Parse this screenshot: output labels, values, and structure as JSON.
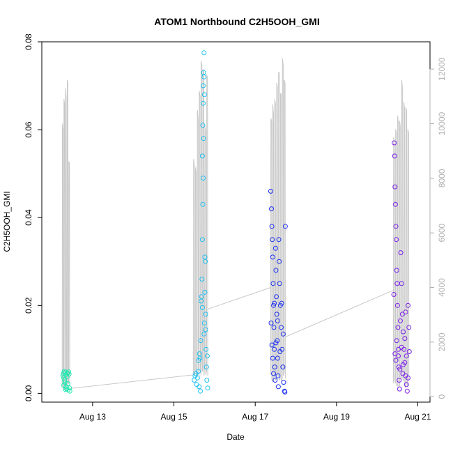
{
  "chart_data": {
    "type": "scatter",
    "title": "ATOM1 Northbound C2H5OOH_GMI",
    "xlabel": "Date",
    "ylabel": "C2H5OOH_GMI",
    "x_ticks": [
      "Aug 13",
      "Aug 15",
      "Aug 17",
      "Aug 19",
      "Aug 21"
    ],
    "x_tick_days": [
      13,
      15,
      17,
      19,
      21
    ],
    "xlim_days": [
      11.75,
      21.3
    ],
    "ylim": [
      -0.002,
      0.08
    ],
    "y_ticks": [
      0.0,
      0.02,
      0.04,
      0.06,
      0.08
    ],
    "y_tick_labels": [
      "0.00",
      "0.02",
      "0.04",
      "0.06",
      "0.08"
    ],
    "y2_label": "",
    "y2_ticks": [
      0,
      2000,
      4000,
      6000,
      8000,
      10000,
      12000
    ],
    "y2_tick_labels": [
      "0",
      "2000",
      "4000",
      "6000",
      "8000",
      "10000",
      "12000"
    ],
    "y2lim": [
      -200,
      13000
    ],
    "grid": false,
    "legend": "none",
    "colors": {
      "flight1": "#22e8b0",
      "flight2": "#1ec0f0",
      "flight3": "#1e30f0",
      "flight4": "#7a1ee8",
      "altitude_line": "#c8c8c8",
      "axis": "#000000",
      "right_axis": "#b0b0b0"
    },
    "series": [
      {
        "x_day_range": [
          12.25,
          12.45
        ],
        "y_range": [
          0.0005,
          0.0055
        ],
        "points": [
          [
            12.27,
            0.004
          ],
          [
            12.28,
            0.0045
          ],
          [
            12.29,
            0.0035
          ],
          [
            12.3,
            0.005
          ],
          [
            12.31,
            0.003
          ],
          [
            12.32,
            0.0025
          ],
          [
            12.33,
            0.0048
          ],
          [
            12.34,
            0.0042
          ],
          [
            12.35,
            0.0015
          ],
          [
            12.36,
            0.001
          ],
          [
            12.37,
            0.0038
          ],
          [
            12.38,
            0.0046
          ],
          [
            12.39,
            0.0022
          ],
          [
            12.4,
            0.0008
          ],
          [
            12.41,
            0.0049
          ],
          [
            12.42,
            0.0044
          ],
          [
            12.43,
            0.0012
          ],
          [
            12.44,
            0.0005
          ],
          [
            12.29,
            0.0018
          ],
          [
            12.33,
            0.0009
          ]
        ]
      },
      {
        "x_day_range": [
          15.45,
          15.85
        ],
        "y_range": [
          0.0005,
          0.0775
        ],
        "points": [
          [
            15.5,
            0.003
          ],
          [
            15.52,
            0.004
          ],
          [
            15.54,
            0.0045
          ],
          [
            15.56,
            0.002
          ],
          [
            15.58,
            0.0035
          ],
          [
            15.6,
            0.005
          ],
          [
            15.62,
            0.0015
          ],
          [
            15.64,
            0.008
          ],
          [
            15.66,
            0.012
          ],
          [
            15.68,
            0.022
          ],
          [
            15.7,
            0.035
          ],
          [
            15.7,
            0.054
          ],
          [
            15.71,
            0.061
          ],
          [
            15.72,
            0.066
          ],
          [
            15.72,
            0.07
          ],
          [
            15.73,
            0.073
          ],
          [
            15.74,
            0.0775
          ],
          [
            15.74,
            0.072
          ],
          [
            15.75,
            0.068
          ],
          [
            15.73,
            0.058
          ],
          [
            15.72,
            0.049
          ],
          [
            15.71,
            0.043
          ],
          [
            15.76,
            0.031
          ],
          [
            15.77,
            0.03
          ],
          [
            15.78,
            0.018
          ],
          [
            15.79,
            0.01
          ],
          [
            15.8,
            0.006
          ],
          [
            15.81,
            0.003
          ],
          [
            15.75,
            0.016
          ],
          [
            15.76,
            0.023
          ],
          [
            15.69,
            0.026
          ],
          [
            15.67,
            0.021
          ],
          [
            15.65,
            0.0005
          ],
          [
            15.63,
            0.009
          ],
          [
            15.61,
            0.0075
          ],
          [
            15.83,
            0.0012
          ],
          [
            15.82,
            0.0085
          ],
          [
            15.78,
            0.0145
          ],
          [
            15.7,
            0.0195
          ],
          [
            15.74,
            0.0135
          ]
        ]
      },
      {
        "x_day_range": [
          17.35,
          17.75
        ],
        "y_range": [
          0.0003,
          0.0465
        ],
        "points": [
          [
            17.38,
            0.046
          ],
          [
            17.4,
            0.042
          ],
          [
            17.41,
            0.038
          ],
          [
            17.42,
            0.035
          ],
          [
            17.43,
            0.031
          ],
          [
            17.44,
            0.025
          ],
          [
            17.45,
            0.02
          ],
          [
            17.46,
            0.015
          ],
          [
            17.47,
            0.01
          ],
          [
            17.48,
            0.006
          ],
          [
            17.49,
            0.003
          ],
          [
            17.5,
            0.033
          ],
          [
            17.51,
            0.028
          ],
          [
            17.52,
            0.022
          ],
          [
            17.53,
            0.018
          ],
          [
            17.54,
            0.012
          ],
          [
            17.55,
            0.008
          ],
          [
            17.56,
            0.004
          ],
          [
            17.57,
            0.0015
          ],
          [
            17.58,
            0.035
          ],
          [
            17.59,
            0.03
          ],
          [
            17.6,
            0.025
          ],
          [
            17.62,
            0.02
          ],
          [
            17.64,
            0.015
          ],
          [
            17.66,
            0.01
          ],
          [
            17.68,
            0.006
          ],
          [
            17.7,
            0.0025
          ],
          [
            17.72,
            0.0005
          ],
          [
            17.73,
            0.0003
          ],
          [
            17.74,
            0.038
          ],
          [
            17.39,
            0.016
          ],
          [
            17.41,
            0.011
          ],
          [
            17.43,
            0.008
          ],
          [
            17.45,
            0.0045
          ],
          [
            17.47,
            0.0205
          ],
          [
            17.51,
            0.0115
          ],
          [
            17.55,
            0.0165
          ],
          [
            17.61,
            0.0095
          ],
          [
            17.65,
            0.0205
          ],
          [
            17.69,
            0.0135
          ]
        ]
      },
      {
        "x_day_range": [
          20.4,
          20.8
        ],
        "y_range": [
          0.0005,
          0.057
        ],
        "points": [
          [
            20.42,
            0.057
          ],
          [
            20.43,
            0.054
          ],
          [
            20.44,
            0.047
          ],
          [
            20.45,
            0.043
          ],
          [
            20.46,
            0.038
          ],
          [
            20.47,
            0.035
          ],
          [
            20.48,
            0.028
          ],
          [
            20.49,
            0.025
          ],
          [
            20.5,
            0.02
          ],
          [
            20.51,
            0.015
          ],
          [
            20.52,
            0.01
          ],
          [
            20.53,
            0.006
          ],
          [
            20.54,
            0.003
          ],
          [
            20.55,
            0.001
          ],
          [
            20.58,
            0.032
          ],
          [
            20.6,
            0.025
          ],
          [
            20.62,
            0.018
          ],
          [
            20.64,
            0.014
          ],
          [
            20.66,
            0.01
          ],
          [
            20.68,
            0.007
          ],
          [
            20.7,
            0.004
          ],
          [
            20.72,
            0.002
          ],
          [
            20.74,
            0.0005
          ],
          [
            20.76,
            0.02
          ],
          [
            20.78,
            0.015
          ],
          [
            20.44,
            0.009
          ],
          [
            20.46,
            0.0075
          ],
          [
            20.48,
            0.012
          ],
          [
            20.52,
            0.0085
          ],
          [
            20.56,
            0.0055
          ],
          [
            20.6,
            0.0105
          ],
          [
            20.64,
            0.0065
          ],
          [
            20.68,
            0.0125
          ],
          [
            20.72,
            0.0085
          ],
          [
            20.76,
            0.0035
          ],
          [
            20.79,
            0.0095
          ],
          [
            20.41,
            0.0225
          ],
          [
            20.57,
            0.0165
          ],
          [
            20.63,
            0.0045
          ],
          [
            20.7,
            0.0185
          ]
        ]
      }
    ]
  }
}
